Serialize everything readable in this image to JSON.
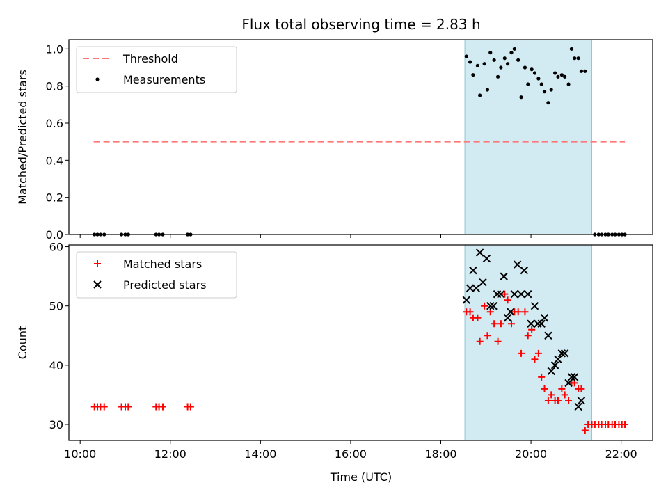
{
  "chart_data": {
    "type": "scatter",
    "title": "Flux total observing time = 2.83 h",
    "xlabel": "Time (UTC)",
    "x_unit": "hours UTC",
    "xlim": [
      "09:45",
      "22:42"
    ],
    "x_ticks": [
      "10:00",
      "12:00",
      "14:00",
      "16:00",
      "18:00",
      "20:00",
      "22:00"
    ],
    "observing_window": {
      "start": "18:32",
      "end": "21:21",
      "color": "#add8e6"
    },
    "panels": [
      {
        "ylabel": "Matched/Predicted stars",
        "ylim": [
          0,
          1.05
        ],
        "y_ticks": [
          "0.0",
          "0.2",
          "0.4",
          "0.6",
          "0.8",
          "1.0"
        ],
        "legend": "top-left",
        "threshold": {
          "name": "Threshold",
          "value": 0.5,
          "x_range": [
            "10:18",
            "22:05"
          ],
          "color": "#ff7777"
        },
        "series": [
          {
            "name": "Measurements",
            "marker": "dot",
            "color": "#000000",
            "points": [
              [
                "10:19",
                0
              ],
              [
                "10:23",
                0
              ],
              [
                "10:27",
                0
              ],
              [
                "10:32",
                0
              ],
              [
                "10:55",
                0
              ],
              [
                "11:00",
                0
              ],
              [
                "11:04",
                0
              ],
              [
                "11:41",
                0
              ],
              [
                "11:45",
                0
              ],
              [
                "11:50",
                0
              ],
              [
                "12:23",
                0
              ],
              [
                "12:27",
                0
              ],
              [
                "18:34",
                0.96
              ],
              [
                "18:39",
                0.93
              ],
              [
                "18:43",
                0.86
              ],
              [
                "18:49",
                0.91
              ],
              [
                "18:52",
                0.75
              ],
              [
                "18:58",
                0.92
              ],
              [
                "19:02",
                0.78
              ],
              [
                "19:06",
                0.98
              ],
              [
                "19:11",
                0.94
              ],
              [
                "19:16",
                0.85
              ],
              [
                "19:20",
                0.9
              ],
              [
                "19:25",
                0.95
              ],
              [
                "19:29",
                0.92
              ],
              [
                "19:34",
                0.98
              ],
              [
                "19:38",
                1.0
              ],
              [
                "19:43",
                0.94
              ],
              [
                "19:47",
                0.74
              ],
              [
                "19:52",
                0.9
              ],
              [
                "19:56",
                0.81
              ],
              [
                "20:01",
                0.89
              ],
              [
                "20:05",
                0.87
              ],
              [
                "20:10",
                0.84
              ],
              [
                "20:14",
                0.81
              ],
              [
                "20:18",
                0.77
              ],
              [
                "20:23",
                0.71
              ],
              [
                "20:27",
                0.78
              ],
              [
                "20:32",
                0.87
              ],
              [
                "20:36",
                0.85
              ],
              [
                "20:41",
                0.86
              ],
              [
                "20:45",
                0.85
              ],
              [
                "20:50",
                0.81
              ],
              [
                "20:54",
                1.0
              ],
              [
                "20:58",
                0.95
              ],
              [
                "21:03",
                0.95
              ],
              [
                "21:07",
                0.88
              ],
              [
                "21:12",
                0.88
              ],
              [
                "21:25",
                0
              ],
              [
                "21:30",
                0
              ],
              [
                "21:34",
                0
              ],
              [
                "21:39",
                0
              ],
              [
                "21:43",
                0
              ],
              [
                "21:48",
                0
              ],
              [
                "21:52",
                0
              ],
              [
                "21:57",
                0
              ],
              [
                "22:01",
                0
              ],
              [
                "22:05",
                0
              ]
            ]
          }
        ]
      },
      {
        "ylabel": "Count",
        "ylim": [
          27.3,
          60.3
        ],
        "y_ticks": [
          "30",
          "40",
          "50",
          "60"
        ],
        "legend": "top-left",
        "series": [
          {
            "name": "Matched stars",
            "marker": "plus",
            "color": "#ff0000",
            "points": [
              [
                "10:19",
                33
              ],
              [
                "10:23",
                33
              ],
              [
                "10:27",
                33
              ],
              [
                "10:32",
                33
              ],
              [
                "10:55",
                33
              ],
              [
                "11:00",
                33
              ],
              [
                "11:04",
                33
              ],
              [
                "11:41",
                33
              ],
              [
                "11:45",
                33
              ],
              [
                "11:50",
                33
              ],
              [
                "12:23",
                33
              ],
              [
                "12:27",
                33
              ],
              [
                "18:34",
                49
              ],
              [
                "18:39",
                49
              ],
              [
                "18:43",
                48
              ],
              [
                "18:49",
                48
              ],
              [
                "18:52",
                44
              ],
              [
                "18:58",
                50
              ],
              [
                "19:02",
                45
              ],
              [
                "19:06",
                49
              ],
              [
                "19:11",
                47
              ],
              [
                "19:16",
                44
              ],
              [
                "19:20",
                47
              ],
              [
                "19:25",
                52
              ],
              [
                "19:29",
                51
              ],
              [
                "19:34",
                47
              ],
              [
                "19:38",
                49
              ],
              [
                "19:43",
                49
              ],
              [
                "19:47",
                42
              ],
              [
                "19:52",
                49
              ],
              [
                "19:56",
                45
              ],
              [
                "20:01",
                46
              ],
              [
                "20:05",
                41
              ],
              [
                "20:10",
                42
              ],
              [
                "20:14",
                38
              ],
              [
                "20:18",
                36
              ],
              [
                "20:23",
                34
              ],
              [
                "20:27",
                35
              ],
              [
                "20:32",
                34
              ],
              [
                "20:36",
                34
              ],
              [
                "20:41",
                36
              ],
              [
                "20:45",
                35
              ],
              [
                "20:50",
                34
              ],
              [
                "20:54",
                37
              ],
              [
                "20:58",
                37
              ],
              [
                "21:03",
                36
              ],
              [
                "21:07",
                36
              ],
              [
                "21:12",
                29
              ],
              [
                "21:16",
                30
              ],
              [
                "21:21",
                30
              ],
              [
                "21:25",
                30
              ],
              [
                "21:30",
                30
              ],
              [
                "21:34",
                30
              ],
              [
                "21:39",
                30
              ],
              [
                "21:43",
                30
              ],
              [
                "21:48",
                30
              ],
              [
                "21:52",
                30
              ],
              [
                "21:57",
                30
              ],
              [
                "22:01",
                30
              ],
              [
                "22:05",
                30
              ]
            ]
          },
          {
            "name": "Predicted stars",
            "marker": "cross",
            "color": "#000000",
            "points": [
              [
                "18:34",
                51
              ],
              [
                "18:39",
                53
              ],
              [
                "18:43",
                56
              ],
              [
                "18:47",
                53
              ],
              [
                "18:52",
                59
              ],
              [
                "18:56",
                54
              ],
              [
                "19:01",
                58
              ],
              [
                "19:06",
                50
              ],
              [
                "19:10",
                50
              ],
              [
                "19:15",
                52
              ],
              [
                "19:20",
                52
              ],
              [
                "19:24",
                55
              ],
              [
                "19:29",
                48
              ],
              [
                "19:33",
                49
              ],
              [
                "19:38",
                52
              ],
              [
                "19:42",
                57
              ],
              [
                "19:47",
                52
              ],
              [
                "19:51",
                56
              ],
              [
                "19:56",
                52
              ],
              [
                "20:00",
                47
              ],
              [
                "20:05",
                50
              ],
              [
                "20:09",
                47
              ],
              [
                "20:14",
                47
              ],
              [
                "20:18",
                48
              ],
              [
                "20:23",
                45
              ],
              [
                "20:27",
                39
              ],
              [
                "20:32",
                40
              ],
              [
                "20:36",
                41
              ],
              [
                "20:41",
                42
              ],
              [
                "20:45",
                42
              ],
              [
                "20:50",
                37
              ],
              [
                "20:54",
                38
              ],
              [
                "20:58",
                38
              ],
              [
                "21:03",
                33
              ],
              [
                "21:07",
                34
              ]
            ]
          }
        ]
      }
    ]
  }
}
